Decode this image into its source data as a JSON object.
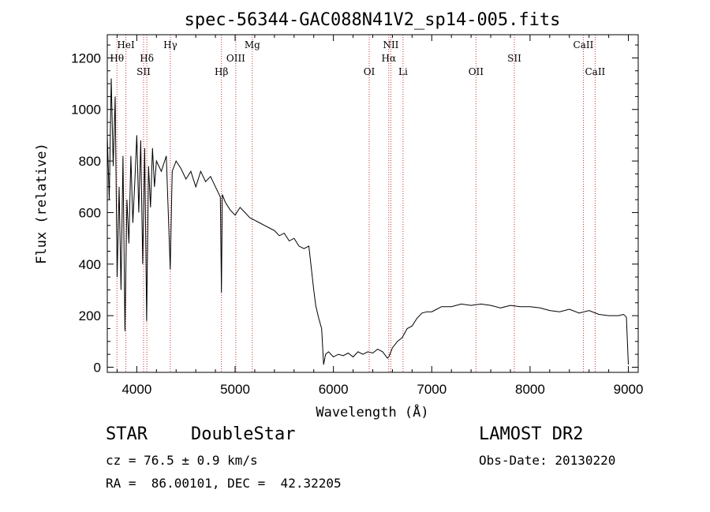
{
  "chart_data": {
    "type": "line",
    "title": "spec-56344-GAC088N41V2_sp14-005.fits",
    "xlabel": "Wavelength (Å)",
    "ylabel": "Flux (relative)",
    "xlim": [
      3700,
      9100
    ],
    "ylim": [
      -20,
      1290
    ],
    "x_ticks": [
      4000,
      5000,
      6000,
      7000,
      8000,
      9000
    ],
    "y_ticks": [
      0,
      200,
      400,
      600,
      800,
      1000,
      1200
    ],
    "grid": false,
    "line_color": "#000000",
    "marker_line_color": "#cc3333",
    "series": [
      {
        "x": [
          3700,
          3720,
          3740,
          3760,
          3780,
          3800,
          3820,
          3840,
          3860,
          3880,
          3900,
          3920,
          3940,
          3960,
          3980,
          4000,
          4020,
          4040,
          4060,
          4080,
          4100,
          4120,
          4140,
          4160,
          4180,
          4200,
          4250,
          4300,
          4340,
          4360,
          4400,
          4450,
          4500,
          4550,
          4600,
          4650,
          4700,
          4750,
          4800,
          4850,
          4861,
          4870,
          4900,
          4950,
          5000,
          5050,
          5100,
          5150,
          5200,
          5250,
          5300,
          5350,
          5400,
          5450,
          5500,
          5550,
          5600,
          5650,
          5700,
          5750,
          5800,
          5820,
          5850,
          5880,
          5900,
          5920,
          5950,
          6000,
          6050,
          6100,
          6150,
          6200,
          6250,
          6300,
          6350,
          6400,
          6450,
          6500,
          6550,
          6563,
          6580,
          6600,
          6650,
          6700,
          6750,
          6800,
          6850,
          6900,
          6950,
          7000,
          7050,
          7100,
          7200,
          7300,
          7400,
          7500,
          7600,
          7700,
          7800,
          7900,
          8000,
          8100,
          8200,
          8300,
          8400,
          8500,
          8600,
          8700,
          8800,
          8900,
          8950,
          8980,
          9000
        ],
        "y": [
          900,
          650,
          1120,
          780,
          1050,
          350,
          700,
          300,
          820,
          140,
          650,
          480,
          820,
          560,
          720,
          900,
          600,
          880,
          400,
          850,
          180,
          780,
          620,
          850,
          700,
          800,
          760,
          820,
          380,
          760,
          800,
          770,
          730,
          760,
          700,
          760,
          720,
          740,
          700,
          660,
          290,
          670,
          640,
          610,
          590,
          620,
          600,
          580,
          570,
          560,
          550,
          540,
          530,
          510,
          520,
          490,
          500,
          470,
          460,
          470,
          300,
          240,
          190,
          150,
          10,
          50,
          60,
          40,
          50,
          45,
          55,
          40,
          60,
          50,
          60,
          55,
          70,
          60,
          35,
          40,
          55,
          75,
          100,
          115,
          150,
          160,
          190,
          210,
          215,
          215,
          225,
          235,
          235,
          245,
          240,
          245,
          240,
          230,
          240,
          235,
          235,
          230,
          220,
          215,
          225,
          210,
          220,
          205,
          200,
          200,
          205,
          195,
          10
        ]
      }
    ],
    "line_markers": [
      {
        "label": "HeI",
        "x": 3889,
        "row": 1
      },
      {
        "label": "Hθ",
        "x": 3798,
        "row": 2
      },
      {
        "label": "SII",
        "x": 4069,
        "row": 3
      },
      {
        "label": "Hδ",
        "x": 4102,
        "row": 2
      },
      {
        "label": "Hγ",
        "x": 4341,
        "row": 1
      },
      {
        "label": "Hβ",
        "x": 4861,
        "row": 3
      },
      {
        "label": "OIII",
        "x": 5007,
        "row": 2
      },
      {
        "label": "Mg",
        "x": 5175,
        "row": 1
      },
      {
        "label": "OI",
        "x": 6364,
        "row": 3
      },
      {
        "label": "NII",
        "x": 6584,
        "row": 1
      },
      {
        "label": "Hα",
        "x": 6563,
        "row": 2
      },
      {
        "label": "Li",
        "x": 6708,
        "row": 3
      },
      {
        "label": "OII",
        "x": 7450,
        "row": 3
      },
      {
        "label": "SII",
        "x": 7840,
        "row": 2
      },
      {
        "label": "CaII",
        "x": 8542,
        "row": 1
      },
      {
        "label": "CaII",
        "x": 8662,
        "row": 3
      }
    ]
  },
  "info": {
    "class": "STAR",
    "subclass": "DoubleStar",
    "survey": "LAMOST DR2",
    "cz": "cz = 76.5 ± 0.9 km/s",
    "obs_date": "Obs-Date: 20130220",
    "coords": "RA =  86.00101, DEC =  42.32205"
  }
}
